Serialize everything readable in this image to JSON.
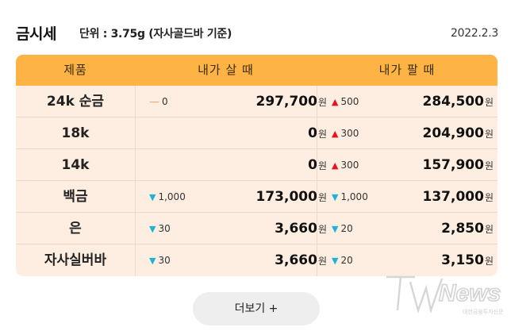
{
  "header": {
    "title": "금시세",
    "unit": "단위 : 3.75g (자사골드바 기준)",
    "date": "2022.2.3"
  },
  "table": {
    "columns": [
      "제품",
      "내가 살 때",
      "내가 팔 때"
    ],
    "currency": "원",
    "rows": [
      {
        "name": "24k 순금",
        "buy_dir": "flat",
        "buy_change": "0",
        "buy_price": "297,700",
        "sell_dir": "up",
        "sell_change": "500",
        "sell_price": "284,500"
      },
      {
        "name": "18k",
        "buy_dir": "",
        "buy_change": "",
        "buy_price": "0",
        "sell_dir": "up",
        "sell_change": "300",
        "sell_price": "204,900"
      },
      {
        "name": "14k",
        "buy_dir": "",
        "buy_change": "",
        "buy_price": "0",
        "sell_dir": "up",
        "sell_change": "300",
        "sell_price": "157,900"
      },
      {
        "name": "백금",
        "buy_dir": "down",
        "buy_change": "1,000",
        "buy_price": "173,000",
        "sell_dir": "down",
        "sell_change": "1,000",
        "sell_price": "137,000"
      },
      {
        "name": "은",
        "buy_dir": "down",
        "buy_change": "30",
        "buy_price": "3,660",
        "sell_dir": "down",
        "sell_change": "20",
        "sell_price": "2,850"
      },
      {
        "name": "자사실버바",
        "buy_dir": "down",
        "buy_change": "30",
        "buy_price": "3,660",
        "sell_dir": "down",
        "sell_change": "20",
        "sell_price": "3,150"
      }
    ]
  },
  "more_button": {
    "label": "더보기 +"
  },
  "watermark": {
    "brand": "TWNews",
    "tagline": "대한금융투자신문"
  },
  "colors": {
    "header_bg": "#fdb445",
    "row_bg": "#fdeee1",
    "up": "#e8141b",
    "down": "#1db3d8",
    "flat": "#f4a260"
  }
}
